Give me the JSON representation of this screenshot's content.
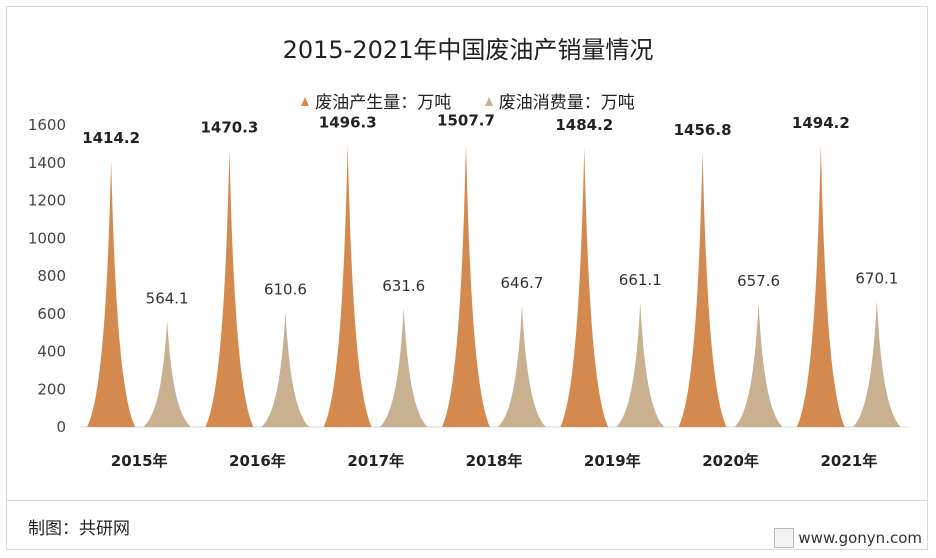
{
  "chart_data": {
    "type": "bar",
    "title": "2015-2021年中国废油产销量情况",
    "categories": [
      "2015年",
      "2016年",
      "2017年",
      "2018年",
      "2019年",
      "2020年",
      "2021年"
    ],
    "series": [
      {
        "name": "废油产生量：万吨",
        "values": [
          1414.2,
          1470.3,
          1496.3,
          1507.7,
          1484.2,
          1456.8,
          1494.2
        ],
        "color": "#d4894f"
      },
      {
        "name": "废油消费量：万吨",
        "values": [
          564.1,
          610.6,
          631.6,
          646.7,
          661.1,
          657.6,
          670.1
        ],
        "color": "#c8b091"
      }
    ],
    "ylim": [
      0,
      1600
    ],
    "yticks": [
      0,
      200,
      400,
      600,
      800,
      1000,
      1200,
      1400,
      1600
    ],
    "legend": "top",
    "grid": false,
    "bar_shape": "spike"
  },
  "footer": "制图：共研网",
  "watermark": "www.gonyn.com"
}
